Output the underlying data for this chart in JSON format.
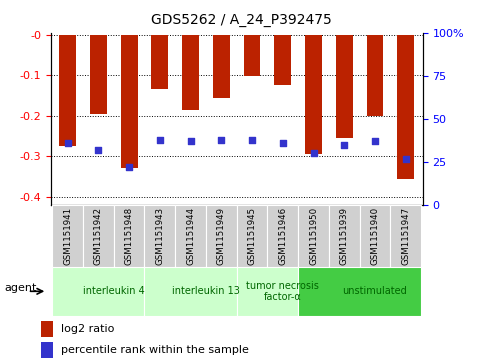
{
  "title": "GDS5262 / A_24_P392475",
  "samples": [
    "GSM1151941",
    "GSM1151942",
    "GSM1151948",
    "GSM1151943",
    "GSM1151944",
    "GSM1151949",
    "GSM1151945",
    "GSM1151946",
    "GSM1151950",
    "GSM1151939",
    "GSM1151940",
    "GSM1151947"
  ],
  "log2_ratios": [
    -0.275,
    -0.195,
    -0.328,
    -0.135,
    -0.185,
    -0.155,
    -0.102,
    -0.125,
    -0.295,
    -0.255,
    -0.2,
    -0.355
  ],
  "percentile_ranks": [
    36,
    32,
    22,
    38,
    37,
    38,
    38,
    36,
    30,
    35,
    37,
    27
  ],
  "groups": [
    {
      "label": "interleukin 4",
      "start": 0,
      "end": 3,
      "color": "#ccffcc",
      "text_color": "#006600"
    },
    {
      "label": "interleukin 13",
      "start": 3,
      "end": 6,
      "color": "#ccffcc",
      "text_color": "#006600"
    },
    {
      "label": "tumor necrosis\nfactor-α",
      "start": 6,
      "end": 8,
      "color": "#ccffcc",
      "text_color": "#006600"
    },
    {
      "label": "unstimulated",
      "start": 8,
      "end": 12,
      "color": "#44cc44",
      "text_color": "#006600"
    }
  ],
  "bar_color": "#bb2200",
  "percentile_color": "#3333cc",
  "ylim_left": [
    -0.42,
    0.005
  ],
  "ylim_right": [
    0,
    100
  ],
  "left_ticks": [
    0.0,
    -0.1,
    -0.2,
    -0.3,
    -0.4
  ],
  "left_tick_labels": [
    "-0",
    "-0.1",
    "-0.2",
    "-0.3",
    "-0.4"
  ],
  "right_ticks": [
    0,
    25,
    50,
    75,
    100
  ],
  "right_tick_labels": [
    "0",
    "25",
    "50",
    "75",
    "100%"
  ],
  "legend_items": [
    {
      "color": "#bb2200",
      "label": "log2 ratio"
    },
    {
      "color": "#3333cc",
      "label": "percentile rank within the sample"
    }
  ],
  "agent_label": "agent",
  "bar_width": 0.55,
  "sample_box_color": "#d0d0d0",
  "plot_bg_color": "#ffffff",
  "grid_color": "#000000",
  "grid_style": "dotted"
}
